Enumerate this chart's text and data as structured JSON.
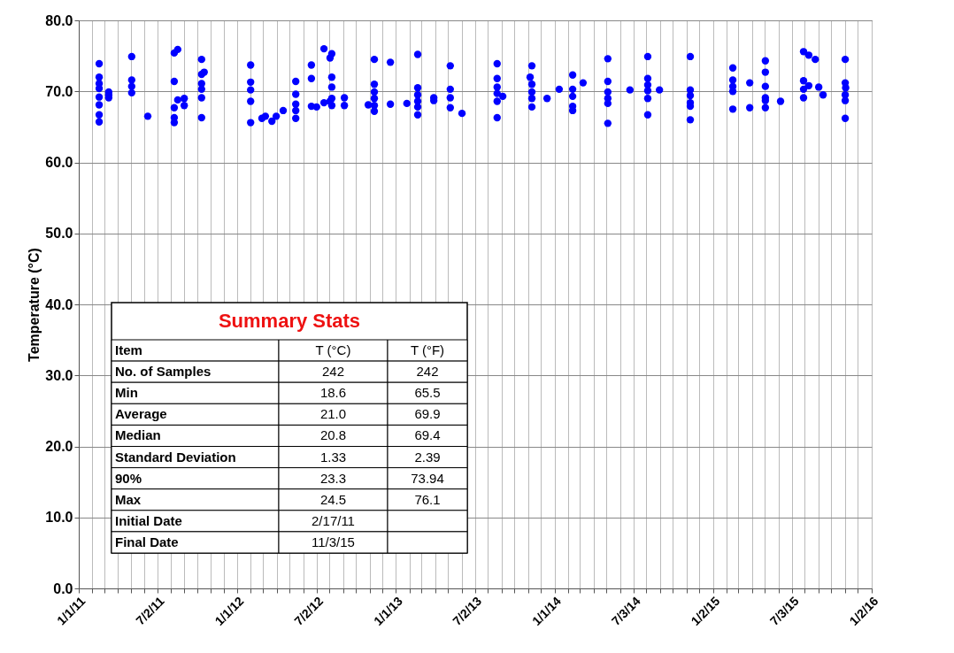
{
  "chart_data": {
    "type": "scatter",
    "ylabel": "Temperature (°C)",
    "marker": "circle",
    "grid": true,
    "legend": false,
    "xlim": [
      "2011-01-01",
      "2016-01-02"
    ],
    "ylim": [
      0,
      80
    ],
    "yticks": [
      {
        "value": 0,
        "label": "0.0"
      },
      {
        "value": 10,
        "label": "10.0"
      },
      {
        "value": 20,
        "label": "20.0"
      },
      {
        "value": 30,
        "label": "30.0"
      },
      {
        "value": 40,
        "label": "40.0"
      },
      {
        "value": 50,
        "label": "50.0"
      },
      {
        "value": 60,
        "label": "60.0"
      },
      {
        "value": 70,
        "label": "70.0"
      },
      {
        "value": 80,
        "label": "80.0"
      }
    ],
    "xticks": [
      {
        "value": "2011-01-01",
        "label": "1/1/11"
      },
      {
        "value": "2011-02-01",
        "label": null
      },
      {
        "value": "2011-03-01",
        "label": null
      },
      {
        "value": "2011-04-01",
        "label": null
      },
      {
        "value": "2011-05-01",
        "label": null
      },
      {
        "value": "2011-06-01",
        "label": null
      },
      {
        "value": "2011-07-02",
        "label": "7/2/11"
      },
      {
        "value": "2011-08-01",
        "label": null
      },
      {
        "value": "2011-09-01",
        "label": null
      },
      {
        "value": "2011-10-01",
        "label": null
      },
      {
        "value": "2011-11-01",
        "label": null
      },
      {
        "value": "2011-12-01",
        "label": null
      },
      {
        "value": "2012-01-01",
        "label": "1/1/12"
      },
      {
        "value": "2012-02-01",
        "label": null
      },
      {
        "value": "2012-03-01",
        "label": null
      },
      {
        "value": "2012-04-01",
        "label": null
      },
      {
        "value": "2012-05-01",
        "label": null
      },
      {
        "value": "2012-06-01",
        "label": null
      },
      {
        "value": "2012-07-02",
        "label": "7/2/12"
      },
      {
        "value": "2012-08-01",
        "label": null
      },
      {
        "value": "2012-09-01",
        "label": null
      },
      {
        "value": "2012-10-01",
        "label": null
      },
      {
        "value": "2012-11-01",
        "label": null
      },
      {
        "value": "2012-12-01",
        "label": null
      },
      {
        "value": "2013-01-01",
        "label": "1/1/13"
      },
      {
        "value": "2013-02-01",
        "label": null
      },
      {
        "value": "2013-03-01",
        "label": null
      },
      {
        "value": "2013-04-01",
        "label": null
      },
      {
        "value": "2013-05-01",
        "label": null
      },
      {
        "value": "2013-06-01",
        "label": null
      },
      {
        "value": "2013-07-02",
        "label": "7/2/13"
      },
      {
        "value": "2013-08-01",
        "label": null
      },
      {
        "value": "2013-09-01",
        "label": null
      },
      {
        "value": "2013-10-01",
        "label": null
      },
      {
        "value": "2013-11-01",
        "label": null
      },
      {
        "value": "2013-12-01",
        "label": null
      },
      {
        "value": "2014-01-01",
        "label": "1/1/14"
      },
      {
        "value": "2014-02-01",
        "label": null
      },
      {
        "value": "2014-03-01",
        "label": null
      },
      {
        "value": "2014-04-01",
        "label": null
      },
      {
        "value": "2014-05-01",
        "label": null
      },
      {
        "value": "2014-06-01",
        "label": null
      },
      {
        "value": "2014-07-03",
        "label": "7/3/14"
      },
      {
        "value": "2014-08-01",
        "label": null
      },
      {
        "value": "2014-09-01",
        "label": null
      },
      {
        "value": "2014-10-01",
        "label": null
      },
      {
        "value": "2014-11-01",
        "label": null
      },
      {
        "value": "2014-12-01",
        "label": null
      },
      {
        "value": "2015-01-02",
        "label": "1/2/15"
      },
      {
        "value": "2015-02-01",
        "label": null
      },
      {
        "value": "2015-03-01",
        "label": null
      },
      {
        "value": "2015-04-01",
        "label": null
      },
      {
        "value": "2015-05-01",
        "label": null
      },
      {
        "value": "2015-06-01",
        "label": null
      },
      {
        "value": "2015-07-03",
        "label": "7/3/15"
      },
      {
        "value": "2015-08-01",
        "label": null
      },
      {
        "value": "2015-09-01",
        "label": null
      },
      {
        "value": "2015-10-01",
        "label": null
      },
      {
        "value": "2015-11-01",
        "label": null
      },
      {
        "value": "2015-12-01",
        "label": null
      },
      {
        "value": "2016-01-02",
        "label": "1/2/16"
      }
    ],
    "series": [
      {
        "color": "#0000ff",
        "x": [
          "2011-02-17",
          "2011-02-17",
          "2011-02-17",
          "2011-02-17",
          "2011-02-17",
          "2011-02-17",
          "2011-02-17",
          "2011-02-17",
          "2011-03-11",
          "2011-03-11",
          "2011-03-11",
          "2011-05-03",
          "2011-05-03",
          "2011-05-03",
          "2011-05-03",
          "2011-06-09",
          "2011-08-09",
          "2011-08-09",
          "2011-08-09",
          "2011-08-09",
          "2011-08-09",
          "2011-08-17",
          "2011-08-17",
          "2011-09-01",
          "2011-09-01",
          "2011-10-11",
          "2011-10-11",
          "2011-10-11",
          "2011-10-11",
          "2011-10-11",
          "2011-10-11",
          "2011-10-17",
          "2012-02-01",
          "2012-02-01",
          "2012-02-01",
          "2012-02-01",
          "2012-02-01",
          "2012-02-27",
          "2012-03-06",
          "2012-03-21",
          "2012-03-31",
          "2012-04-16",
          "2012-05-15",
          "2012-05-15",
          "2012-05-15",
          "2012-05-15",
          "2012-05-15",
          "2012-06-20",
          "2012-06-20",
          "2012-06-20",
          "2012-07-02",
          "2012-07-19",
          "2012-07-19",
          "2012-08-02",
          "2012-08-02",
          "2012-08-06",
          "2012-08-06",
          "2012-08-06",
          "2012-08-06",
          "2012-08-06",
          "2012-09-04",
          "2012-09-04",
          "2012-10-29",
          "2012-11-12",
          "2012-11-12",
          "2012-11-12",
          "2012-11-12",
          "2012-11-12",
          "2012-11-12",
          "2012-12-19",
          "2012-12-19",
          "2013-01-26",
          "2013-02-20",
          "2013-02-20",
          "2013-02-20",
          "2013-02-20",
          "2013-02-20",
          "2013-02-20",
          "2013-03-29",
          "2013-03-29",
          "2013-05-06",
          "2013-05-06",
          "2013-05-06",
          "2013-05-06",
          "2013-06-02",
          "2013-08-22",
          "2013-08-22",
          "2013-08-22",
          "2013-08-22",
          "2013-08-22",
          "2013-08-22",
          "2013-09-04",
          "2013-11-06",
          "2013-11-10",
          "2013-11-10",
          "2013-11-10",
          "2013-11-10",
          "2013-11-10",
          "2013-12-15",
          "2014-01-12",
          "2014-02-12",
          "2014-02-12",
          "2014-02-12",
          "2014-02-12",
          "2014-02-12",
          "2014-03-08",
          "2014-05-04",
          "2014-05-04",
          "2014-05-04",
          "2014-05-04",
          "2014-05-04",
          "2014-05-04",
          "2014-06-24",
          "2014-08-04",
          "2014-08-04",
          "2014-08-04",
          "2014-08-04",
          "2014-08-04",
          "2014-08-04",
          "2014-08-31",
          "2014-11-10",
          "2014-11-10",
          "2014-11-10",
          "2014-11-10",
          "2014-11-10",
          "2014-11-10",
          "2015-02-16",
          "2015-02-16",
          "2015-02-16",
          "2015-02-16",
          "2015-02-16",
          "2015-03-27",
          "2015-03-27",
          "2015-05-02",
          "2015-05-02",
          "2015-05-02",
          "2015-05-02",
          "2015-05-02",
          "2015-05-02",
          "2015-06-06",
          "2015-07-29",
          "2015-07-29",
          "2015-07-29",
          "2015-07-29",
          "2015-08-10",
          "2015-08-10",
          "2015-08-25",
          "2015-09-02",
          "2015-09-12",
          "2015-11-02",
          "2015-11-02",
          "2015-11-02",
          "2015-11-02",
          "2015-11-02",
          "2015-11-03"
        ],
        "values": [
          73.9,
          72.0,
          71.1,
          70.4,
          69.2,
          68.1,
          66.7,
          65.7,
          69.9,
          69.1,
          69.5,
          74.9,
          71.6,
          70.7,
          69.8,
          66.5,
          75.4,
          71.4,
          67.7,
          66.3,
          65.6,
          75.9,
          68.8,
          69.0,
          68.0,
          74.5,
          72.4,
          71.1,
          70.3,
          69.1,
          66.3,
          72.7,
          73.7,
          71.3,
          70.2,
          68.6,
          65.6,
          66.2,
          66.5,
          65.8,
          66.5,
          67.3,
          71.4,
          69.6,
          68.2,
          67.3,
          66.2,
          73.7,
          71.8,
          67.9,
          67.8,
          76.0,
          68.4,
          74.7,
          68.6,
          75.3,
          72.0,
          70.6,
          69.0,
          68.0,
          69.1,
          68.0,
          68.1,
          74.5,
          71.0,
          69.9,
          69.0,
          68.0,
          67.2,
          74.1,
          68.2,
          68.3,
          75.2,
          70.5,
          69.5,
          68.6,
          67.8,
          66.7,
          69.1,
          68.7,
          73.6,
          70.3,
          69.1,
          67.7,
          66.9,
          73.9,
          71.8,
          70.6,
          69.7,
          68.6,
          66.3,
          69.3,
          72.0,
          73.6,
          71.0,
          69.9,
          69.0,
          67.8,
          69.0,
          70.3,
          72.3,
          70.3,
          69.3,
          67.9,
          67.3,
          71.2,
          74.6,
          71.4,
          69.9,
          69.0,
          68.3,
          65.5,
          70.2,
          74.9,
          71.8,
          70.9,
          70.1,
          69.0,
          66.7,
          70.2,
          74.9,
          70.2,
          69.4,
          68.4,
          67.9,
          66.0,
          73.3,
          71.6,
          70.7,
          70.0,
          67.5,
          71.2,
          67.7,
          74.3,
          72.7,
          70.7,
          69.1,
          68.7,
          67.7,
          68.6,
          75.6,
          71.5,
          70.3,
          69.1,
          75.1,
          70.8,
          74.5,
          70.6,
          69.5,
          74.5,
          71.2,
          69.5,
          68.7,
          66.2,
          70.5
        ]
      }
    ],
    "annotations": [
      "Summary Stats",
      "Item",
      "T (°C)",
      "T (°F)",
      "No. of Samples",
      "242",
      "242",
      "Min",
      "18.6",
      "65.5",
      "Average",
      "21.0",
      "69.9",
      "Median",
      "20.8",
      "69.4",
      "Standard Deviation",
      "1.33",
      "2.39",
      "90%",
      "23.3",
      "73.94",
      "Max",
      "24.5",
      "76.1",
      "Initial Date",
      "2/17/11",
      "Final Date",
      "11/3/15"
    ]
  }
}
